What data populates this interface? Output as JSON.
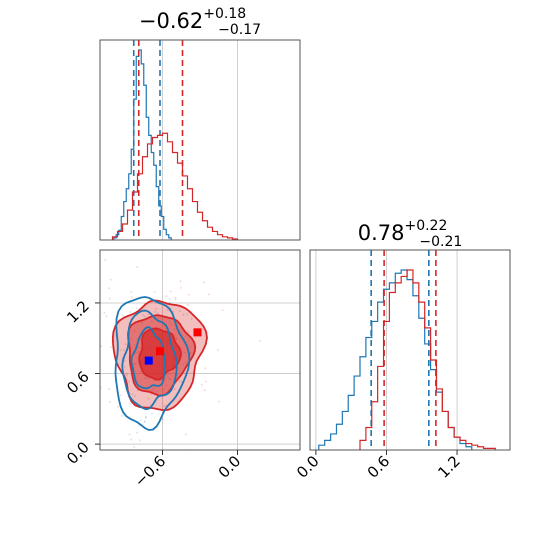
{
  "chart_data": [
    {
      "panel": "x-marginal",
      "type": "histogram",
      "title": {
        "value": "−0.62",
        "upper": "+0.18",
        "lower": "−0.17"
      },
      "xlim": [
        -1.1,
        0.5
      ],
      "grid": true,
      "series": [
        {
          "color": "#1f77b4",
          "bins": [
            -0.98,
            -0.96,
            -0.94,
            -0.92,
            -0.9,
            -0.88,
            -0.86,
            -0.84,
            -0.82,
            -0.8,
            -0.78,
            -0.76,
            -0.74,
            -0.72,
            -0.7,
            -0.68,
            -0.66,
            -0.64,
            -0.62,
            -0.6,
            -0.58,
            -0.56,
            -0.54
          ],
          "counts": [
            2,
            5,
            9,
            22,
            36,
            48,
            62,
            85,
            132,
            172,
            178,
            165,
            145,
            115,
            98,
            82,
            70,
            50,
            32,
            22,
            10,
            5,
            2
          ],
          "quantiles": [
            -0.83,
            -0.62
          ]
        },
        {
          "color": "#d62728",
          "bins": [
            -0.98,
            -0.94,
            -0.9,
            -0.86,
            -0.82,
            -0.78,
            -0.74,
            -0.7,
            -0.66,
            -0.62,
            -0.58,
            -0.54,
            -0.5,
            -0.46,
            -0.42,
            -0.38,
            -0.34,
            -0.3,
            -0.26,
            -0.22,
            -0.18,
            -0.14,
            -0.1,
            -0.06,
            -0.02
          ],
          "counts": [
            3,
            8,
            15,
            28,
            45,
            62,
            78,
            90,
            96,
            98,
            100,
            92,
            82,
            72,
            60,
            48,
            36,
            26,
            18,
            12,
            8,
            5,
            3,
            2,
            1
          ],
          "quantiles": [
            -0.79,
            -0.44
          ]
        }
      ]
    },
    {
      "panel": "y-marginal",
      "type": "histogram",
      "title": {
        "value": "0.78",
        "upper": "+0.22",
        "lower": "−0.21"
      },
      "xlim": [
        -0.05,
        1.65
      ],
      "xticks": [
        "0.0",
        "0.6",
        "1.2"
      ],
      "grid": true,
      "series": [
        {
          "color": "#1f77b4",
          "bins": [
            0.05,
            0.1,
            0.15,
            0.2,
            0.25,
            0.3,
            0.35,
            0.4,
            0.45,
            0.5,
            0.55,
            0.6,
            0.65,
            0.7,
            0.75,
            0.8,
            0.85,
            0.9,
            0.95,
            1.0,
            1.05,
            1.1,
            1.15,
            1.2,
            1.25,
            1.3
          ],
          "counts": [
            3,
            6,
            10,
            16,
            24,
            34,
            46,
            58,
            70,
            80,
            92,
            100,
            104,
            110,
            112,
            106,
            96,
            82,
            66,
            50,
            36,
            24,
            14,
            8,
            4,
            2
          ],
          "quantiles": [
            0.47,
            0.96
          ]
        },
        {
          "color": "#d62728",
          "bins": [
            0.4,
            0.45,
            0.5,
            0.55,
            0.6,
            0.65,
            0.7,
            0.75,
            0.8,
            0.85,
            0.9,
            0.95,
            1.0,
            1.05,
            1.1,
            1.15,
            1.2,
            1.25,
            1.3,
            1.35,
            1.4,
            1.45,
            1.5
          ],
          "counts": [
            6,
            14,
            30,
            52,
            80,
            98,
            104,
            108,
            112,
            104,
            92,
            76,
            56,
            38,
            24,
            14,
            8,
            6,
            4,
            3,
            2,
            1,
            1
          ],
          "quantiles": [
            0.58,
            1.02
          ]
        }
      ]
    },
    {
      "panel": "joint",
      "type": "contour",
      "xlim": [
        -1.1,
        0.5
      ],
      "ylim": [
        -0.05,
        1.65
      ],
      "xticks": [
        "−0.6",
        "0.0"
      ],
      "yticks": [
        "0.0",
        "0.6",
        "1.2"
      ],
      "grid": true,
      "series": [
        {
          "color": "#d62728",
          "center": [
            -0.63,
            0.77
          ],
          "sigma": [
            0.16,
            0.21
          ],
          "rho": 0.05,
          "levels": [
            1.0,
            1.6,
            2.2
          ],
          "filled": true
        },
        {
          "color": "#1f77b4",
          "center": [
            -0.71,
            0.71
          ],
          "sigma": [
            0.13,
            0.25
          ],
          "rho": 0.0,
          "levels": [
            1.0,
            1.6,
            2.2
          ],
          "filled": false
        }
      ],
      "markers": [
        {
          "color": "#0000ff",
          "x": -0.71,
          "y": 0.71
        },
        {
          "color": "#ff0000",
          "x": -0.32,
          "y": 0.95
        },
        {
          "color": "#ff0000",
          "x": -0.62,
          "y": 0.79
        }
      ]
    }
  ]
}
